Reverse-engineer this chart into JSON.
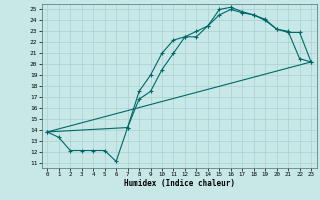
{
  "xlabel": "Humidex (Indice chaleur)",
  "bg_color": "#c8e8e8",
  "grid_color": "#a8d0d0",
  "line_color": "#006868",
  "xlim": [
    -0.5,
    23.5
  ],
  "ylim": [
    10.5,
    25.5
  ],
  "xticks": [
    0,
    1,
    2,
    3,
    4,
    5,
    6,
    7,
    8,
    9,
    10,
    11,
    12,
    13,
    14,
    15,
    16,
    17,
    18,
    19,
    20,
    21,
    22,
    23
  ],
  "yticks": [
    11,
    12,
    13,
    14,
    15,
    16,
    17,
    18,
    19,
    20,
    21,
    22,
    23,
    24,
    25
  ],
  "line1_x": [
    0,
    1,
    2,
    3,
    4,
    5,
    6,
    7,
    8,
    9,
    10,
    11,
    12,
    13,
    14,
    15,
    16,
    17,
    18,
    19,
    20,
    21,
    22,
    23
  ],
  "line1_y": [
    13.8,
    13.3,
    12.1,
    12.1,
    12.1,
    12.1,
    11.1,
    14.2,
    17.5,
    19.0,
    21.0,
    22.2,
    22.5,
    23.0,
    23.5,
    25.0,
    25.2,
    24.8,
    24.5,
    24.1,
    23.2,
    23.0,
    20.5,
    20.2
  ],
  "line2_x": [
    0,
    7,
    8,
    9,
    10,
    11,
    12,
    13,
    14,
    15,
    16,
    17,
    18,
    19,
    20,
    21,
    22,
    23
  ],
  "line2_y": [
    13.8,
    14.2,
    16.8,
    17.5,
    19.5,
    21.0,
    22.5,
    22.5,
    23.5,
    24.5,
    25.0,
    24.7,
    24.5,
    24.0,
    23.2,
    22.9,
    22.9,
    20.2
  ],
  "line3_x": [
    0,
    23
  ],
  "line3_y": [
    13.8,
    20.2
  ]
}
